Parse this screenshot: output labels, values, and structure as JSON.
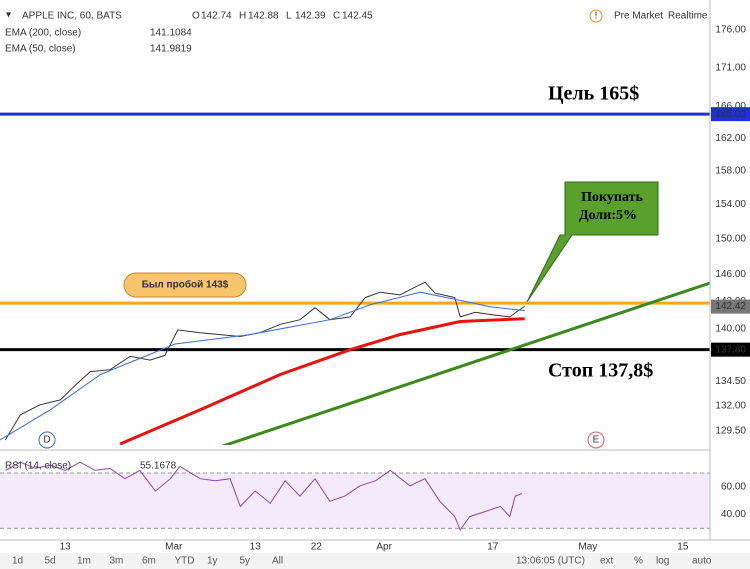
{
  "toolbar": {
    "symbol": "APPLE INC, 60, BATS",
    "ohlc": [
      {
        "label": "O",
        "value": 142.74
      },
      {
        "label": "H",
        "value": 142.88
      },
      {
        "label": "L",
        "value": 142.39
      },
      {
        "label": "C",
        "value": 142.45
      }
    ],
    "pre_market": "Pre Market",
    "realtime": "Realtime"
  },
  "annotations": {
    "target": "Цель 165$",
    "stop": "Стоп 137,8$",
    "broken": "Был пробой 143$",
    "buy": [
      "Покупать",
      "Доли:5%"
    ],
    "markers": [
      "D",
      "E"
    ]
  },
  "chart_data": [
    {
      "type": "line",
      "log_scale": true,
      "grid": true,
      "xlim": [
        3.4,
        108
      ],
      "ylim": [
        128.1,
        180.1
      ],
      "xticks": [
        13,
        {
          "value": 29,
          "label": "Mar"
        },
        {
          "value": 41,
          "label": "13"
        },
        {
          "value": 50,
          "label": "22"
        },
        {
          "value": 60,
          "label": "Apr"
        },
        {
          "value": 76,
          "label": "17"
        },
        {
          "value": 90,
          "label": "May"
        },
        {
          "value": 104,
          "label": "15"
        }
      ],
      "yticks": [
        {
          "value": 129.5,
          "label": "129.50"
        },
        {
          "value": 132,
          "label": "132.00"
        },
        {
          "value": 134.5,
          "label": "134.50"
        },
        {
          "value": 140,
          "label": "140.00"
        },
        {
          "value": 143,
          "label": "143.00"
        },
        {
          "value": 146,
          "label": "146.00"
        },
        {
          "value": 150,
          "label": "150.00"
        },
        {
          "value": 154,
          "label": "154.00"
        },
        {
          "value": 158,
          "label": "158.00"
        },
        {
          "value": 162,
          "label": "162.00"
        },
        {
          "value": 166,
          "label": "166.00"
        },
        {
          "value": 171,
          "label": "171.00"
        },
        {
          "value": 176,
          "label": "176.00"
        }
      ],
      "series": [
        {
          "color": "#333333",
          "x": [
            4.2,
            6.4,
            9.3,
            12.3,
            14.5,
            16.7,
            19.6,
            22.6,
            25.5,
            27.7,
            29.6,
            32.9,
            35.8,
            38.8,
            41.7,
            44.7,
            47.6,
            49.8,
            52.0,
            55.0,
            57.2,
            59.4,
            62.3,
            66.0,
            67.5,
            70.4,
            71.2,
            73.4,
            76.3,
            78.5,
            80.0,
            80.7
          ],
          "values": [
            128.6,
            131.1,
            132.1,
            132.6,
            134.1,
            135.5,
            135.7,
            137.1,
            136.7,
            137.2,
            139.9,
            139.6,
            139.4,
            139.2,
            139.6,
            140.5,
            141.0,
            142.3,
            141.0,
            141.3,
            143.4,
            144.0,
            143.7,
            145.1,
            143.9,
            143.4,
            141.3,
            141.8,
            141.5,
            141.3,
            142.1,
            142.45
          ]
        },
        {
          "name": "EMA (200, close)",
          "color": "#e8120c",
          "width": 3,
          "last_value": 141.1084,
          "x": [
            21.1,
            32.9,
            44.7,
            55.0,
            62.3,
            71.2,
            80.7
          ],
          "values": [
            128.2,
            131.6,
            135.2,
            137.8,
            139.4,
            140.8,
            141.11
          ]
        },
        {
          "name": "EMA (50, close)",
          "color": "#3c6bd1",
          "width": 1,
          "last_value": 141.9819,
          "x": [
            3.4,
            10.8,
            18.2,
            29.2,
            40.2,
            52.0,
            57.9,
            65.3,
            71.2,
            75.6,
            80.7
          ],
          "values": [
            128.6,
            131.6,
            135.2,
            138.4,
            139.4,
            141.0,
            142.6,
            144.0,
            143.1,
            142.4,
            141.98
          ]
        }
      ],
      "horizontal_lines": [
        {
          "value": 165.03,
          "color": "#1c2fd8",
          "labeled": true
        },
        {
          "value": 142.8,
          "color": "#f5a623"
        },
        {
          "value": 137.8,
          "label": "137.80",
          "color": "#000000",
          "labeled": true
        }
      ],
      "last_price": 142.42
    },
    {
      "type": "line",
      "title": "RSI (14, close)",
      "last_value": 55.1678,
      "grid": true,
      "xlim": [
        3.4,
        108
      ],
      "ylim": [
        27.4,
        83
      ],
      "band": [
        30,
        70
      ],
      "yticks": [
        {
          "value": 40,
          "label": "40.00"
        },
        {
          "value": 60,
          "label": "60.00"
        }
      ],
      "series": [
        {
          "color": "#8e44ad",
          "width": 1,
          "x": [
            4.2,
            6.4,
            8.6,
            10.8,
            13,
            15.2,
            17.4,
            19.6,
            21.8,
            24.0,
            26.3,
            28.5,
            29.9,
            32.9,
            35.1,
            37.3,
            38.8,
            41.0,
            43.2,
            45.4,
            47.6,
            49.8,
            52.0,
            54.2,
            56.4,
            58.7,
            60.9,
            63.8,
            66.0,
            68.2,
            70.4,
            71.2,
            72.6,
            74.9,
            77.1,
            78.5,
            79.3,
            80.3
          ],
          "values": [
            71.9,
            77.8,
            73.3,
            75.6,
            71.9,
            77.8,
            71.9,
            73.3,
            65.9,
            71.9,
            57.0,
            65.9,
            74.8,
            65.9,
            64.4,
            65.9,
            45.9,
            57.0,
            48.1,
            64.4,
            53.3,
            65.9,
            49.6,
            53.3,
            60.7,
            64.4,
            71.9,
            60.7,
            65.9,
            49.6,
            38.5,
            28.9,
            38.5,
            42.2,
            45.9,
            38.5,
            53.3,
            55.1678
          ]
        }
      ]
    }
  ],
  "bottom_bar": {
    "ranges": [
      "1d",
      "5d",
      "1m",
      "3m",
      "6m",
      "YTD",
      "1y",
      "5y",
      "All"
    ],
    "time": "13:06:05 (UTC)",
    "options": [
      "ext",
      "%",
      "log",
      "auto"
    ]
  }
}
